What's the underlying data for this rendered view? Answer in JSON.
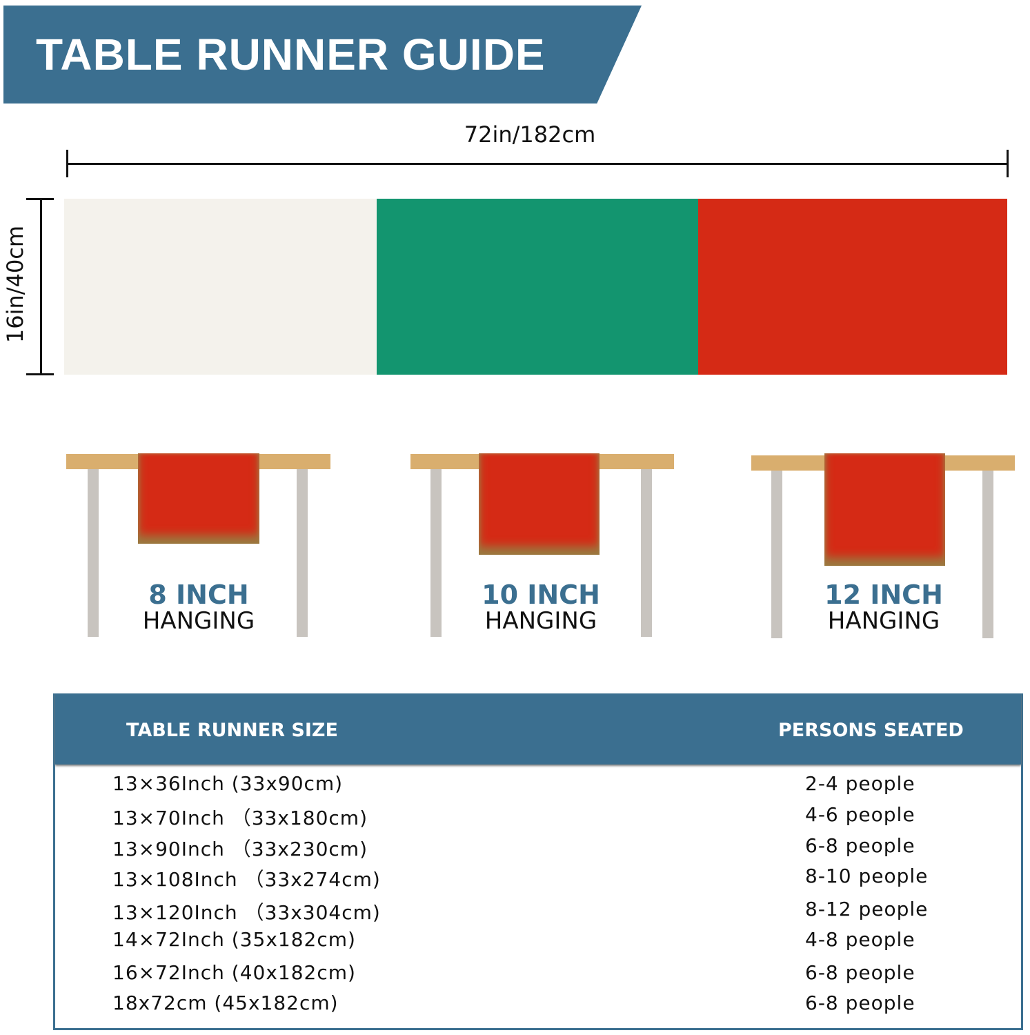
{
  "title": "TABLE RUNNER GUIDE",
  "length_label": "72in/182cm",
  "width_label": "16in/40cm",
  "colors": {
    "header": "#3b6f90",
    "white": "#f4f2ec",
    "green": "#13956f",
    "red": "#d52a15",
    "table": "#d9ae6e",
    "legs": "#c8c4bf"
  },
  "hanging": [
    {
      "size": "8 INCH",
      "label": "HANGING"
    },
    {
      "size": "10 INCH",
      "label": "HANGING"
    },
    {
      "size": "12 INCH",
      "label": "HANGING"
    }
  ],
  "table": {
    "headers": [
      "TABLE RUNNER SIZE",
      "PERSONS SEATED"
    ],
    "rows": [
      [
        "13×36Inch (33x90cm)",
        "2-4 people"
      ],
      [
        "13×70Inch （33x180cm)",
        "4-6 people"
      ],
      [
        "13×90Inch （33x230cm)",
        "6-8 people"
      ],
      [
        "13×108Inch （33x274cm)",
        "8-10 people"
      ],
      [
        "13×120Inch （33x304cm)",
        "8-12 people"
      ],
      [
        "14×72Inch (35x182cm)",
        "4-8 people"
      ],
      [
        "16×72Inch (40x182cm)",
        "6-8 people"
      ],
      [
        "18x72cm (45x182cm)",
        "6-8 people"
      ]
    ]
  }
}
